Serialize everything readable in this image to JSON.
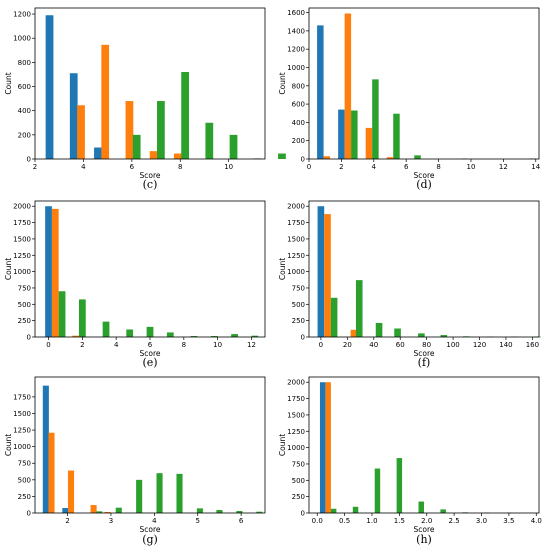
{
  "colors": {
    "blue": "#1f77b4",
    "orange": "#ff7f0e",
    "green": "#2ca02c"
  },
  "chart_data": [
    {
      "type": "bar",
      "caption": "(c)",
      "xlabel": "Score",
      "ylabel": "Count",
      "xlim": [
        2,
        11.5
      ],
      "ylim": [
        0,
        1250
      ],
      "xticks": [
        2,
        4,
        6,
        8,
        10
      ],
      "yticks": [
        0,
        200,
        400,
        600,
        800,
        1000,
        1200
      ],
      "bar_width": 0.32,
      "series": [
        {
          "color": "blue",
          "points": [
            [
              2.6,
              1190
            ],
            [
              3.6,
              710
            ],
            [
              4.6,
              95
            ]
          ]
        },
        {
          "color": "orange",
          "points": [
            [
              3.9,
              445
            ],
            [
              4.9,
              945
            ],
            [
              5.9,
              480
            ],
            [
              6.9,
              65
            ],
            [
              7.9,
              45
            ]
          ]
        },
        {
          "color": "green",
          "points": [
            [
              6.2,
              200
            ],
            [
              7.2,
              480
            ],
            [
              8.2,
              720
            ],
            [
              9.2,
              300
            ],
            [
              10.2,
              200
            ],
            [
              11.2,
              5
            ],
            [
              12.2,
              45
            ]
          ]
        }
      ]
    },
    {
      "type": "bar",
      "caption": "(d)",
      "xlabel": "Score",
      "ylabel": "Count",
      "xlim": [
        0,
        14.2
      ],
      "ylim": [
        0,
        1650
      ],
      "xticks": [
        0,
        2,
        4,
        6,
        8,
        10,
        12,
        14
      ],
      "yticks": [
        0,
        200,
        400,
        600,
        800,
        1000,
        1200,
        1400,
        1600
      ],
      "bar_width": 0.4,
      "series": [
        {
          "color": "blue",
          "points": [
            [
              0.7,
              1460
            ],
            [
              2.0,
              540
            ]
          ]
        },
        {
          "color": "orange",
          "points": [
            [
              1.1,
              30
            ],
            [
              2.4,
              1590
            ],
            [
              3.7,
              340
            ],
            [
              5.0,
              20
            ]
          ]
        },
        {
          "color": "green",
          "points": [
            [
              2.8,
              530
            ],
            [
              4.1,
              870
            ],
            [
              5.4,
              495
            ],
            [
              6.7,
              40
            ],
            [
              9.6,
              5
            ],
            [
              13.8,
              5
            ]
          ]
        }
      ]
    },
    {
      "type": "bar",
      "caption": "(e)",
      "xlabel": "Score",
      "ylabel": "Count",
      "xlim": [
        -0.8,
        12.8
      ],
      "ylim": [
        0,
        2080
      ],
      "xticks": [
        0,
        2,
        4,
        6,
        8,
        10,
        12
      ],
      "yticks": [
        0,
        250,
        500,
        750,
        1000,
        1250,
        1500,
        1750,
        2000
      ],
      "bar_width": 0.4,
      "series": [
        {
          "color": "blue",
          "points": [
            [
              0.0,
              2000
            ]
          ]
        },
        {
          "color": "orange",
          "points": [
            [
              0.4,
              1960
            ],
            [
              1.6,
              20
            ]
          ]
        },
        {
          "color": "green",
          "points": [
            [
              0.8,
              700
            ],
            [
              2.0,
              575
            ],
            [
              3.4,
              235
            ],
            [
              4.8,
              115
            ],
            [
              6.0,
              155
            ],
            [
              7.2,
              70
            ],
            [
              8.6,
              15
            ],
            [
              9.8,
              15
            ],
            [
              11.0,
              45
            ],
            [
              12.2,
              20
            ]
          ]
        }
      ]
    },
    {
      "type": "bar",
      "caption": "(f)",
      "xlabel": "Score",
      "ylabel": "Count",
      "xlim": [
        -9,
        165
      ],
      "ylim": [
        0,
        2080
      ],
      "xticks": [
        0,
        20,
        40,
        60,
        80,
        100,
        120,
        140,
        160
      ],
      "yticks": [
        0,
        250,
        500,
        750,
        1000,
        1250,
        1500,
        1750,
        2000
      ],
      "bar_width": 5,
      "series": [
        {
          "color": "blue",
          "points": [
            [
              0,
              2000
            ]
          ]
        },
        {
          "color": "orange",
          "points": [
            [
              5,
              1880
            ],
            [
              25,
              110
            ]
          ]
        },
        {
          "color": "green",
          "points": [
            [
              10,
              600
            ],
            [
              29,
              870
            ],
            [
              44,
              215
            ],
            [
              58,
              130
            ],
            [
              76,
              55
            ],
            [
              93,
              30
            ],
            [
              110,
              10
            ],
            [
              128,
              5
            ],
            [
              146,
              5
            ],
            [
              164,
              5
            ]
          ]
        }
      ]
    },
    {
      "type": "bar",
      "caption": "(g)",
      "xlabel": "Score",
      "ylabel": "Count",
      "xlim": [
        1.25,
        6.55
      ],
      "ylim": [
        0,
        2050
      ],
      "xticks": [
        2,
        3,
        4,
        5,
        6
      ],
      "yticks": [
        0,
        250,
        500,
        750,
        1000,
        1250,
        1500,
        1750
      ],
      "bar_width": 0.14,
      "series": [
        {
          "color": "blue",
          "points": [
            [
              1.5,
              1920
            ],
            [
              1.95,
              75
            ]
          ]
        },
        {
          "color": "orange",
          "points": [
            [
              1.63,
              1210
            ],
            [
              2.08,
              640
            ],
            [
              2.6,
              120
            ],
            [
              2.92,
              15
            ]
          ]
        },
        {
          "color": "green",
          "points": [
            [
              2.73,
              25
            ],
            [
              3.18,
              80
            ],
            [
              3.65,
              500
            ],
            [
              4.12,
              600
            ],
            [
              4.58,
              590
            ],
            [
              5.05,
              70
            ],
            [
              5.5,
              45
            ],
            [
              5.96,
              30
            ],
            [
              6.42,
              20
            ]
          ]
        }
      ]
    },
    {
      "type": "bar",
      "caption": "(h)",
      "xlabel": "Score",
      "ylabel": "Count",
      "xlim": [
        -0.15,
        4.05
      ],
      "ylim": [
        0,
        2080
      ],
      "xticks": [
        0.0,
        0.5,
        1.0,
        1.5,
        2.0,
        2.5,
        3.0,
        3.5,
        4.0
      ],
      "yticks": [
        0,
        250,
        500,
        750,
        1000,
        1250,
        1500,
        1750,
        2000
      ],
      "tick_labels": [
        "0.0",
        "0.5",
        "1.0",
        "1.5",
        "2.0",
        "2.5",
        "3.0",
        "3.5",
        "4.0"
      ],
      "bar_width": 0.1,
      "series": [
        {
          "color": "blue",
          "points": [
            [
              0.1,
              2000
            ]
          ]
        },
        {
          "color": "orange",
          "points": [
            [
              0.2,
              2000
            ]
          ]
        },
        {
          "color": "green",
          "points": [
            [
              0.3,
              65
            ],
            [
              0.7,
              95
            ],
            [
              1.1,
              680
            ],
            [
              1.5,
              840
            ],
            [
              1.9,
              175
            ],
            [
              2.3,
              55
            ],
            [
              2.7,
              10
            ],
            [
              3.1,
              5
            ],
            [
              3.5,
              5
            ]
          ]
        }
      ]
    }
  ]
}
